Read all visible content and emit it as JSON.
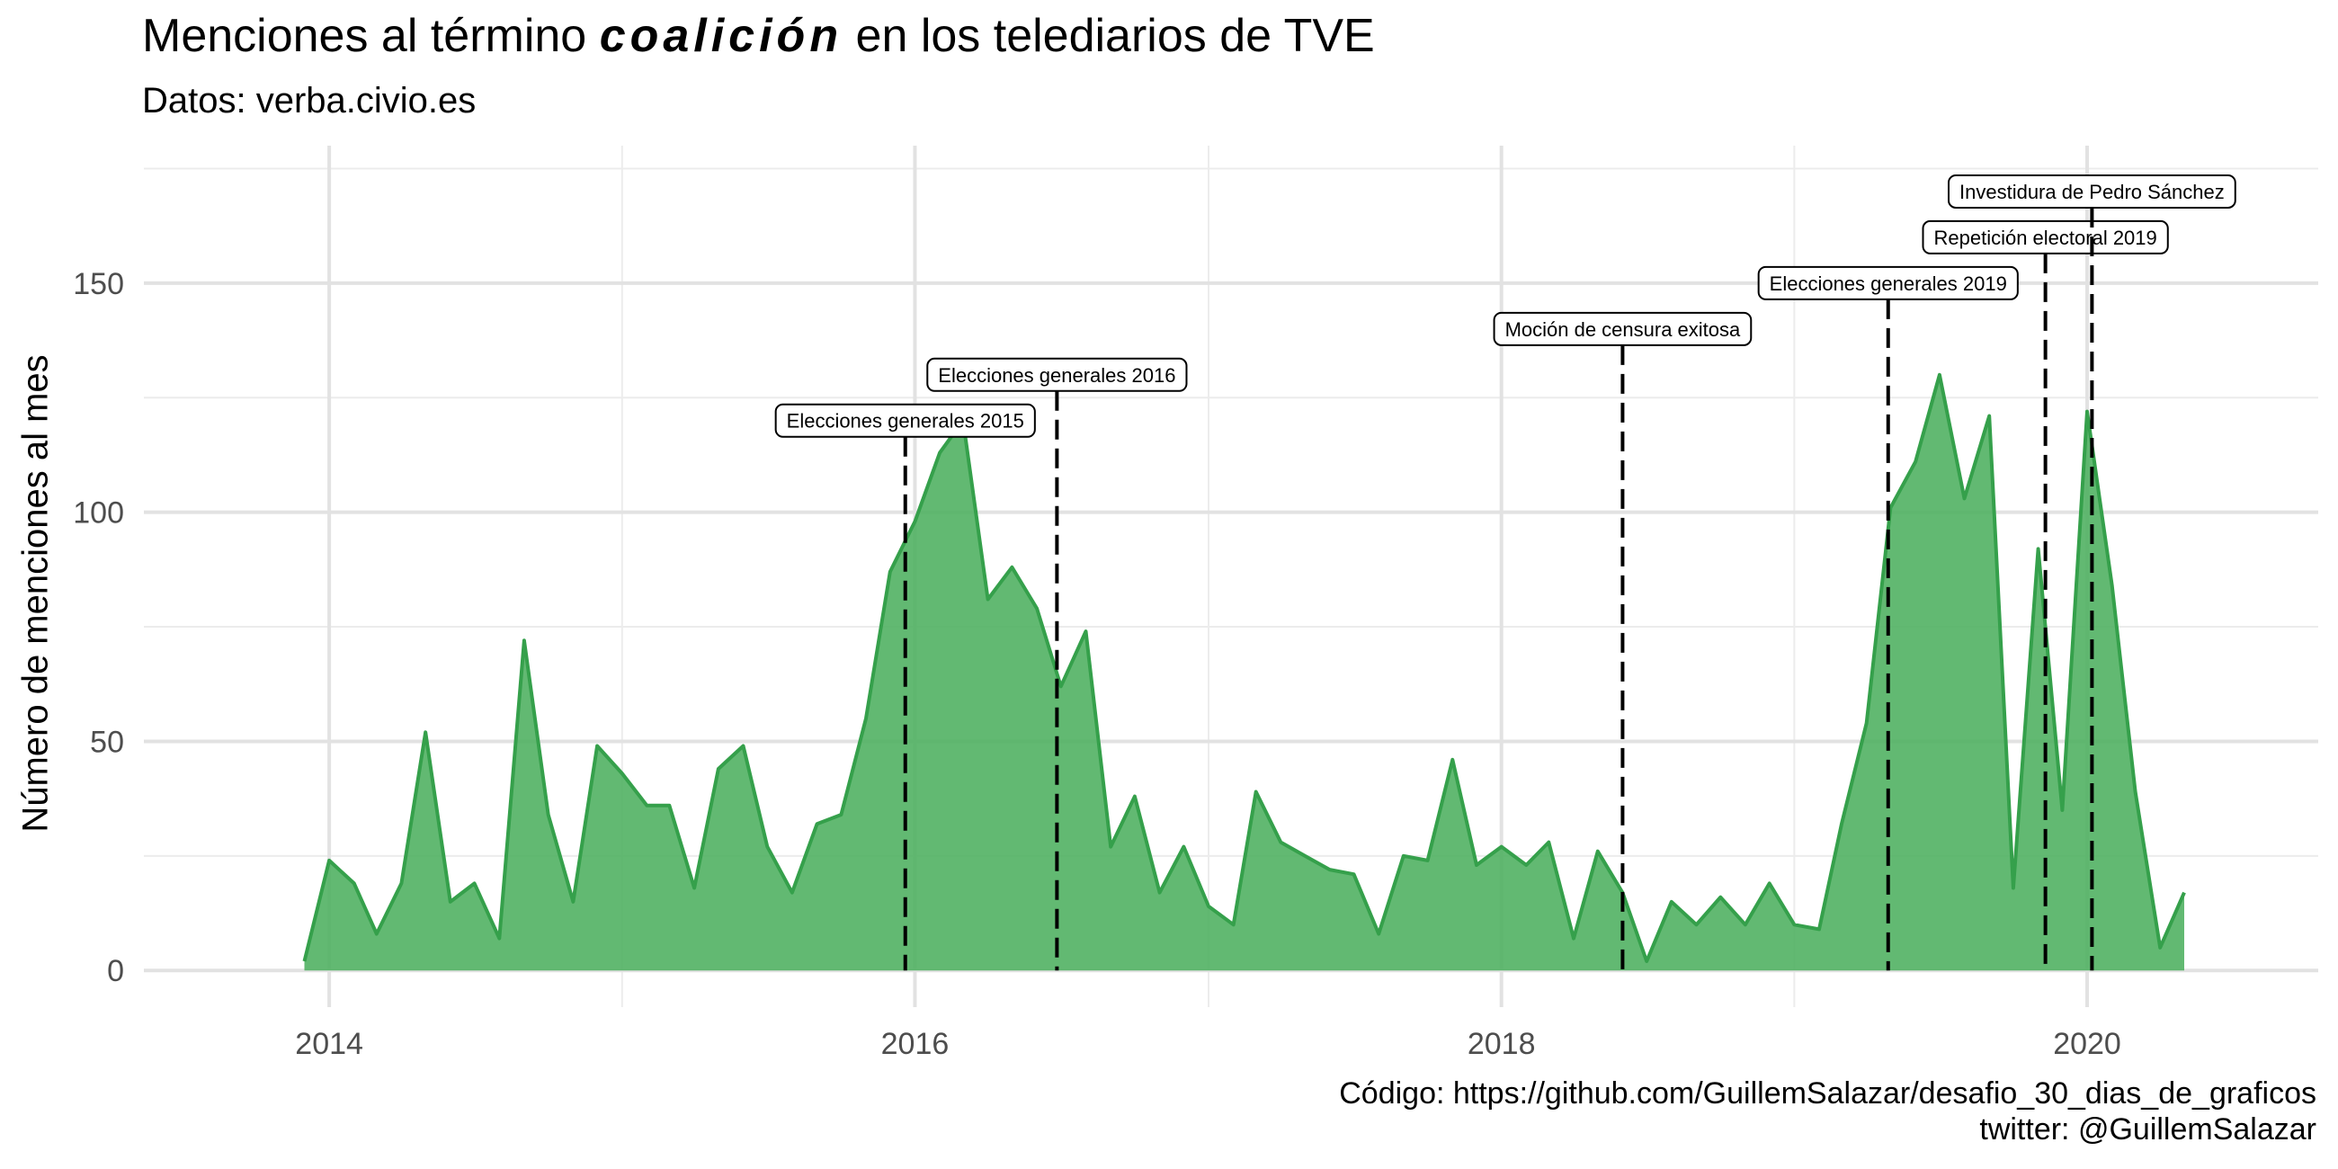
{
  "chart": {
    "title_pre": "Menciones al término ",
    "title_em": "coalición",
    "title_post": " en los telediarios de TVE",
    "subtitle": "Datos: verba.civio.es",
    "ylabel": "Número de menciones al mes",
    "caption_line1": "Código: https://github.com/GuillemSalazar/desafio_30_dias_de_graficos",
    "caption_line2": "twitter: @GuillemSalazar",
    "fill_color": "#4CAF5F",
    "line_color": "#35A04B"
  },
  "chart_data": {
    "type": "area",
    "xlabel": "",
    "ylabel": "Número de menciones al mes",
    "xlim": [
      "2013-05-15",
      "2020-10-15"
    ],
    "ylim": [
      -8,
      180
    ],
    "x_ticks": [
      {
        "date": "2014-01-01",
        "label": "2014"
      },
      {
        "date": "2016-01-01",
        "label": "2016"
      },
      {
        "date": "2018-01-01",
        "label": "2018"
      },
      {
        "date": "2020-01-01",
        "label": "2020"
      }
    ],
    "x_minor_ticks": [
      "2015-01-01",
      "2017-01-01",
      "2019-01-01"
    ],
    "y_ticks": [
      0,
      50,
      100,
      150
    ],
    "y_minor_ticks": [
      25,
      75,
      125,
      175
    ],
    "grid": true,
    "points": [
      [
        "2013-12-01",
        2
      ],
      [
        "2014-01-01",
        24
      ],
      [
        "2014-02-01",
        19
      ],
      [
        "2014-03-01",
        8
      ],
      [
        "2014-04-01",
        19
      ],
      [
        "2014-05-01",
        52
      ],
      [
        "2014-06-01",
        15
      ],
      [
        "2014-07-01",
        19
      ],
      [
        "2014-08-01",
        7
      ],
      [
        "2014-09-01",
        72
      ],
      [
        "2014-10-01",
        34
      ],
      [
        "2014-11-01",
        15
      ],
      [
        "2014-12-01",
        49
      ],
      [
        "2015-01-01",
        43
      ],
      [
        "2015-02-01",
        36
      ],
      [
        "2015-03-01",
        36
      ],
      [
        "2015-04-01",
        18
      ],
      [
        "2015-05-01",
        44
      ],
      [
        "2015-06-01",
        49
      ],
      [
        "2015-07-01",
        27
      ],
      [
        "2015-08-01",
        17
      ],
      [
        "2015-09-01",
        32
      ],
      [
        "2015-10-01",
        34
      ],
      [
        "2015-11-01",
        55
      ],
      [
        "2015-12-01",
        87
      ],
      [
        "2016-01-01",
        98
      ],
      [
        "2016-02-01",
        113
      ],
      [
        "2016-03-01",
        120
      ],
      [
        "2016-04-01",
        81
      ],
      [
        "2016-05-01",
        88
      ],
      [
        "2016-06-01",
        79
      ],
      [
        "2016-07-01",
        62
      ],
      [
        "2016-08-01",
        74
      ],
      [
        "2016-09-01",
        27
      ],
      [
        "2016-10-01",
        38
      ],
      [
        "2016-11-01",
        17
      ],
      [
        "2016-12-01",
        27
      ],
      [
        "2017-01-01",
        14
      ],
      [
        "2017-02-01",
        10
      ],
      [
        "2017-03-01",
        39
      ],
      [
        "2017-04-01",
        28
      ],
      [
        "2017-05-01",
        25
      ],
      [
        "2017-06-01",
        22
      ],
      [
        "2017-07-01",
        21
      ],
      [
        "2017-08-01",
        8
      ],
      [
        "2017-09-01",
        25
      ],
      [
        "2017-10-01",
        24
      ],
      [
        "2017-11-01",
        46
      ],
      [
        "2017-12-01",
        23
      ],
      [
        "2018-01-01",
        27
      ],
      [
        "2018-02-01",
        23
      ],
      [
        "2018-03-01",
        28
      ],
      [
        "2018-04-01",
        7
      ],
      [
        "2018-05-01",
        26
      ],
      [
        "2018-06-01",
        17
      ],
      [
        "2018-07-01",
        2
      ],
      [
        "2018-08-01",
        15
      ],
      [
        "2018-09-01",
        10
      ],
      [
        "2018-10-01",
        16
      ],
      [
        "2018-11-01",
        10
      ],
      [
        "2018-12-01",
        19
      ],
      [
        "2019-01-01",
        10
      ],
      [
        "2019-02-01",
        9
      ],
      [
        "2019-03-01",
        32
      ],
      [
        "2019-04-01",
        54
      ],
      [
        "2019-05-01",
        101
      ],
      [
        "2019-06-01",
        111
      ],
      [
        "2019-07-01",
        130
      ],
      [
        "2019-08-01",
        103
      ],
      [
        "2019-09-01",
        121
      ],
      [
        "2019-10-01",
        18
      ],
      [
        "2019-11-01",
        92
      ],
      [
        "2019-12-01",
        35
      ],
      [
        "2020-01-01",
        122
      ],
      [
        "2020-02-01",
        84
      ],
      [
        "2020-03-01",
        39
      ],
      [
        "2020-04-01",
        5
      ],
      [
        "2020-05-01",
        17
      ]
    ],
    "annotations": [
      {
        "label": "Elecciones generales 2015",
        "date": "2015-12-20",
        "label_y": 120
      },
      {
        "label": "Elecciones generales 2016",
        "date": "2016-06-26",
        "label_y": 130
      },
      {
        "label": "Moción de censura exitosa",
        "date": "2018-06-01",
        "label_y": 140
      },
      {
        "label": "Elecciones generales 2019",
        "date": "2019-04-28",
        "label_y": 150
      },
      {
        "label": "Repetición electoral 2019",
        "date": "2019-11-10",
        "label_y": 160
      },
      {
        "label": "Investidura de Pedro Sánchez",
        "date": "2020-01-07",
        "label_y": 170
      }
    ]
  }
}
